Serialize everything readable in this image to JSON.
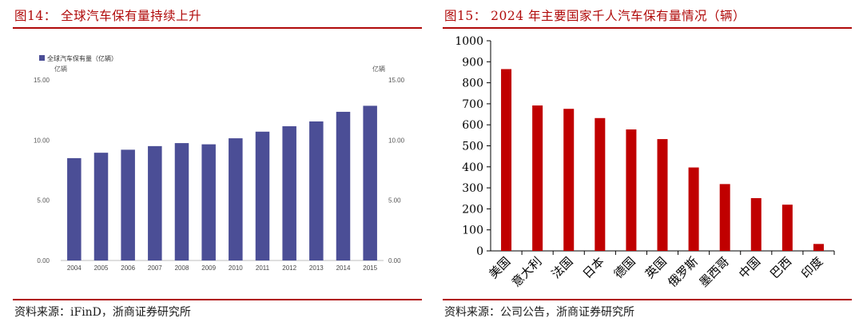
{
  "left": {
    "title": "图14：  全球汽车保有量持续上升",
    "source": "资料来源：iFinD，浙商证券研究所",
    "chart_data": {
      "type": "bar",
      "legend": "全球汽车保有量（亿辆）",
      "unit_left": "亿辆",
      "unit_right": "亿辆",
      "categories": [
        "2004",
        "2005",
        "2006",
        "2007",
        "2008",
        "2009",
        "2010",
        "2011",
        "2012",
        "2013",
        "2014",
        "2015"
      ],
      "values": [
        8.5,
        8.95,
        9.2,
        9.5,
        9.75,
        9.65,
        10.15,
        10.7,
        11.15,
        11.55,
        12.35,
        12.85
      ],
      "y_ticks": [
        "0.00",
        "5.00",
        "10.00",
        "15.00"
      ],
      "ylim": [
        0,
        15
      ],
      "bar_color": "#4b4e96",
      "grid": false
    }
  },
  "right": {
    "title": "图15：  2024 年主要国家千人汽车保有量情况（辆）",
    "source": "资料来源：公司公告，浙商证券研究所",
    "chart_data": {
      "type": "bar",
      "categories": [
        "美国",
        "意大利",
        "法国",
        "日本",
        "德国",
        "英国",
        "俄罗斯",
        "墨西哥",
        "中国",
        "巴西",
        "印度"
      ],
      "values": [
        865,
        692,
        676,
        632,
        578,
        532,
        397,
        318,
        251,
        220,
        33
      ],
      "y_ticks": [
        "0",
        "100",
        "200",
        "300",
        "400",
        "500",
        "600",
        "700",
        "800",
        "900",
        "1000"
      ],
      "ylim": [
        0,
        1000
      ],
      "bar_color": "#c00000",
      "grid": false
    }
  }
}
